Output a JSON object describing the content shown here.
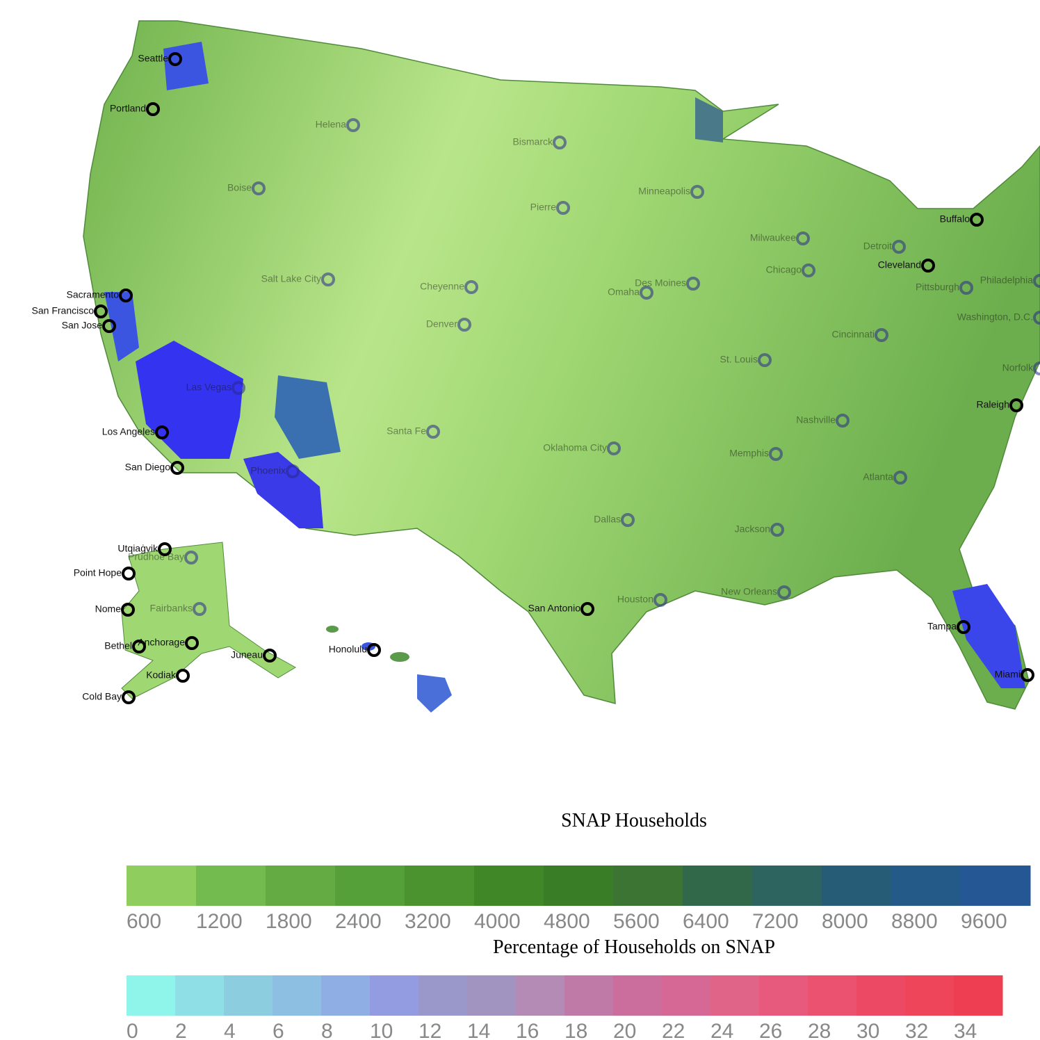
{
  "map": {
    "cities": [
      "Seattle",
      "Portland",
      "Boise",
      "Helena",
      "Bismarck",
      "Pierre",
      "Minneapolis",
      "Milwaukee",
      "Chicago",
      "Detroit",
      "Buffalo",
      "Cleveland",
      "Pittsburgh",
      "Philadelphia",
      "Washington, D.C.",
      "Norfolk",
      "Raleigh",
      "Cincinnati",
      "St. Louis",
      "Nashville",
      "Memphis",
      "Atlanta",
      "Jackson",
      "New Orleans",
      "Tampa",
      "Miami",
      "Houston",
      "San Antonio",
      "Dallas",
      "Oklahoma City",
      "Santa Fe",
      "Denver",
      "Cheyenne",
      "Salt Lake City",
      "Omaha",
      "Des Moines",
      "Las Vegas",
      "Phoenix",
      "Los Angeles",
      "San Diego",
      "Sacramento",
      "San Francisco",
      "San Jose",
      "Honolulu",
      "Utqiaġvik",
      "Prudhoe Bay",
      "Point Hope",
      "Nome",
      "Fairbanks",
      "Bethel",
      "Anchorage",
      "Juneau",
      "Kodiak",
      "Cold Bay"
    ]
  },
  "legends": [
    {
      "title": "SNAP Households",
      "bins": [
        600,
        1200,
        1800,
        2400,
        3200,
        4000,
        4800,
        5600,
        6400,
        7200,
        8000,
        8800,
        9600
      ],
      "colors": [
        "#8fce5e",
        "#74bb4f",
        "#64ab44",
        "#56a03a",
        "#4a932f",
        "#3f8727",
        "#3a7d27",
        "#3b7433",
        "#32684a",
        "#2d6460",
        "#275c76",
        "#245a88",
        "#245794"
      ]
    },
    {
      "title": "Percentage of Households on SNAP",
      "bins": [
        0,
        2,
        4,
        6,
        8,
        10,
        12,
        14,
        16,
        18,
        20,
        22,
        24,
        26,
        28,
        30,
        32,
        34
      ],
      "colors": [
        "#8ff5ea",
        "#8ee0e6",
        "#8dcde0",
        "#8cbfe2",
        "#8faee3",
        "#939ce0",
        "#9a98cb",
        "#a294c1",
        "#b38bb4",
        "#c07aa8",
        "#cc6e9d",
        "#d66896",
        "#df6488",
        "#e75a7e",
        "#ea5270",
        "#ec4a64",
        "#ee455a",
        "#ee3f52"
      ]
    }
  ]
}
